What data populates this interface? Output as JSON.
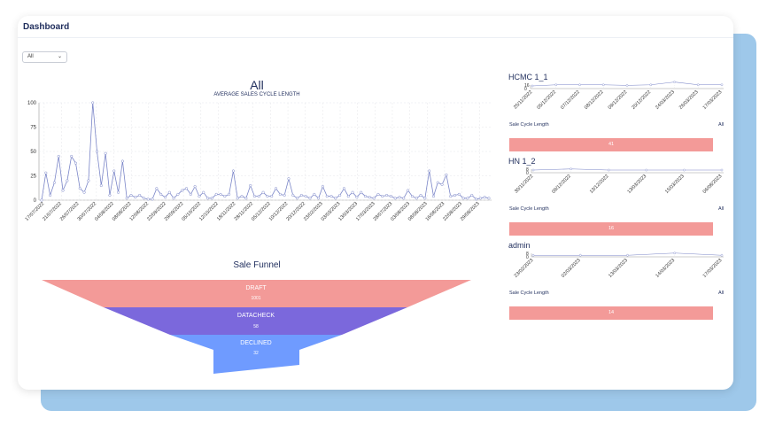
{
  "header": {
    "title": "Dashboard"
  },
  "filter": {
    "value": "All"
  },
  "main_chart": {
    "title": "All",
    "subtitle": "AVERAGE SALES CYCLE LENGTH"
  },
  "chart_data": [
    {
      "type": "line",
      "title": "All",
      "subtitle": "AVERAGE SALES CYCLE LENGTH",
      "ylim": [
        0,
        100
      ],
      "yticks": [
        "0",
        "25",
        "50",
        "75",
        "100"
      ],
      "xticks": [
        "17/07/2022",
        "21/07/2022",
        "26/07/2022",
        "30/07/2022",
        "04/08/2022",
        "08/08/2022",
        "12/08/2022",
        "22/09/2022",
        "29/09/2022",
        "05/10/2022",
        "12/10/2022",
        "18/11/2022",
        "28/11/2022",
        "05/12/2022",
        "10/12/2022",
        "20/12/2022",
        "23/02/2023",
        "03/03/2023",
        "13/03/2023",
        "17/03/2023",
        "28/07/2023",
        "03/08/2023",
        "08/08/2023",
        "16/08/2023",
        "22/08/2023",
        "29/08/2023"
      ],
      "grid": true,
      "color": "#7b86c8",
      "values": [
        0,
        28,
        5,
        18,
        45,
        10,
        20,
        45,
        38,
        12,
        8,
        20,
        100,
        50,
        15,
        48,
        5,
        30,
        8,
        40,
        2,
        5,
        3,
        5,
        2,
        1,
        1,
        12,
        6,
        3,
        8,
        2,
        6,
        10,
        12,
        6,
        14,
        4,
        8,
        2,
        2,
        6,
        6,
        4,
        6,
        30,
        2,
        4,
        2,
        15,
        4,
        4,
        8,
        4,
        4,
        12,
        6,
        5,
        22,
        5,
        2,
        5,
        4,
        2,
        6,
        2,
        14,
        4,
        4,
        2,
        5,
        12,
        4,
        8,
        3,
        8,
        4,
        3,
        2,
        6,
        4,
        5,
        4,
        2,
        3,
        2,
        10,
        4,
        2,
        5,
        2,
        30,
        4,
        18,
        16,
        26,
        4,
        5,
        6,
        2,
        2,
        5,
        1,
        2,
        3,
        2
      ]
    },
    {
      "type": "line",
      "title": "HCMC 1_1",
      "yticks": [
        "16",
        "0"
      ],
      "xticks": [
        "25/11/2022",
        "05/12/2022",
        "07/12/2022",
        "08/12/2022",
        "09/12/2022",
        "20/12/2022",
        "24/03/2023",
        "26/03/2023",
        "17/03/2023"
      ],
      "values": [
        8,
        10,
        10,
        10,
        9,
        10,
        15,
        10,
        10
      ]
    },
    {
      "type": "line",
      "title": "HN 1_2",
      "yticks": [
        "8",
        "0"
      ],
      "xticks": [
        "30/11/2022",
        "09/12/2022",
        "13/12/2022",
        "13/03/2023",
        "15/03/2023",
        "06/08/2023"
      ],
      "values": [
        4,
        5,
        4,
        4,
        4,
        4
      ]
    },
    {
      "type": "line",
      "title": "admin",
      "yticks": [
        "8",
        "0"
      ],
      "xticks": [
        "23/02/2023",
        "02/03/2023",
        "13/03/2023",
        "14/03/2023",
        "17/03/2023"
      ],
      "values": [
        3,
        3,
        3,
        5,
        3
      ]
    },
    {
      "type": "funnel",
      "title": "Sale Funnel",
      "stages": [
        {
          "name": "DRAFT",
          "value": 1001,
          "color": "#f39a98"
        },
        {
          "name": "DATACHECK",
          "value": 58,
          "color": "#7b68dc"
        },
        {
          "name": "DECLINED",
          "value": 32,
          "color": "#6f9bff"
        }
      ]
    }
  ],
  "side": [
    {
      "title": "HCMC 1_1",
      "ymax": "16",
      "ymin": "0",
      "cycle_label": "Sale Cycle Length",
      "all_label": "All",
      "bar_value": "41"
    },
    {
      "title": "HN 1_2",
      "ymax": "8",
      "ymin": "0",
      "cycle_label": "Sale Cycle Length",
      "all_label": "All",
      "bar_value": "16"
    },
    {
      "title": "admin",
      "ymax": "8",
      "ymin": "0",
      "cycle_label": "Sale Cycle Length",
      "all_label": "All",
      "bar_value": "14"
    }
  ],
  "funnel": {
    "title": "Sale Funnel",
    "stages": [
      {
        "name": "DRAFT",
        "value": "1001"
      },
      {
        "name": "DATACHECK",
        "value": "58"
      },
      {
        "name": "DECLINED",
        "value": "32"
      }
    ]
  }
}
